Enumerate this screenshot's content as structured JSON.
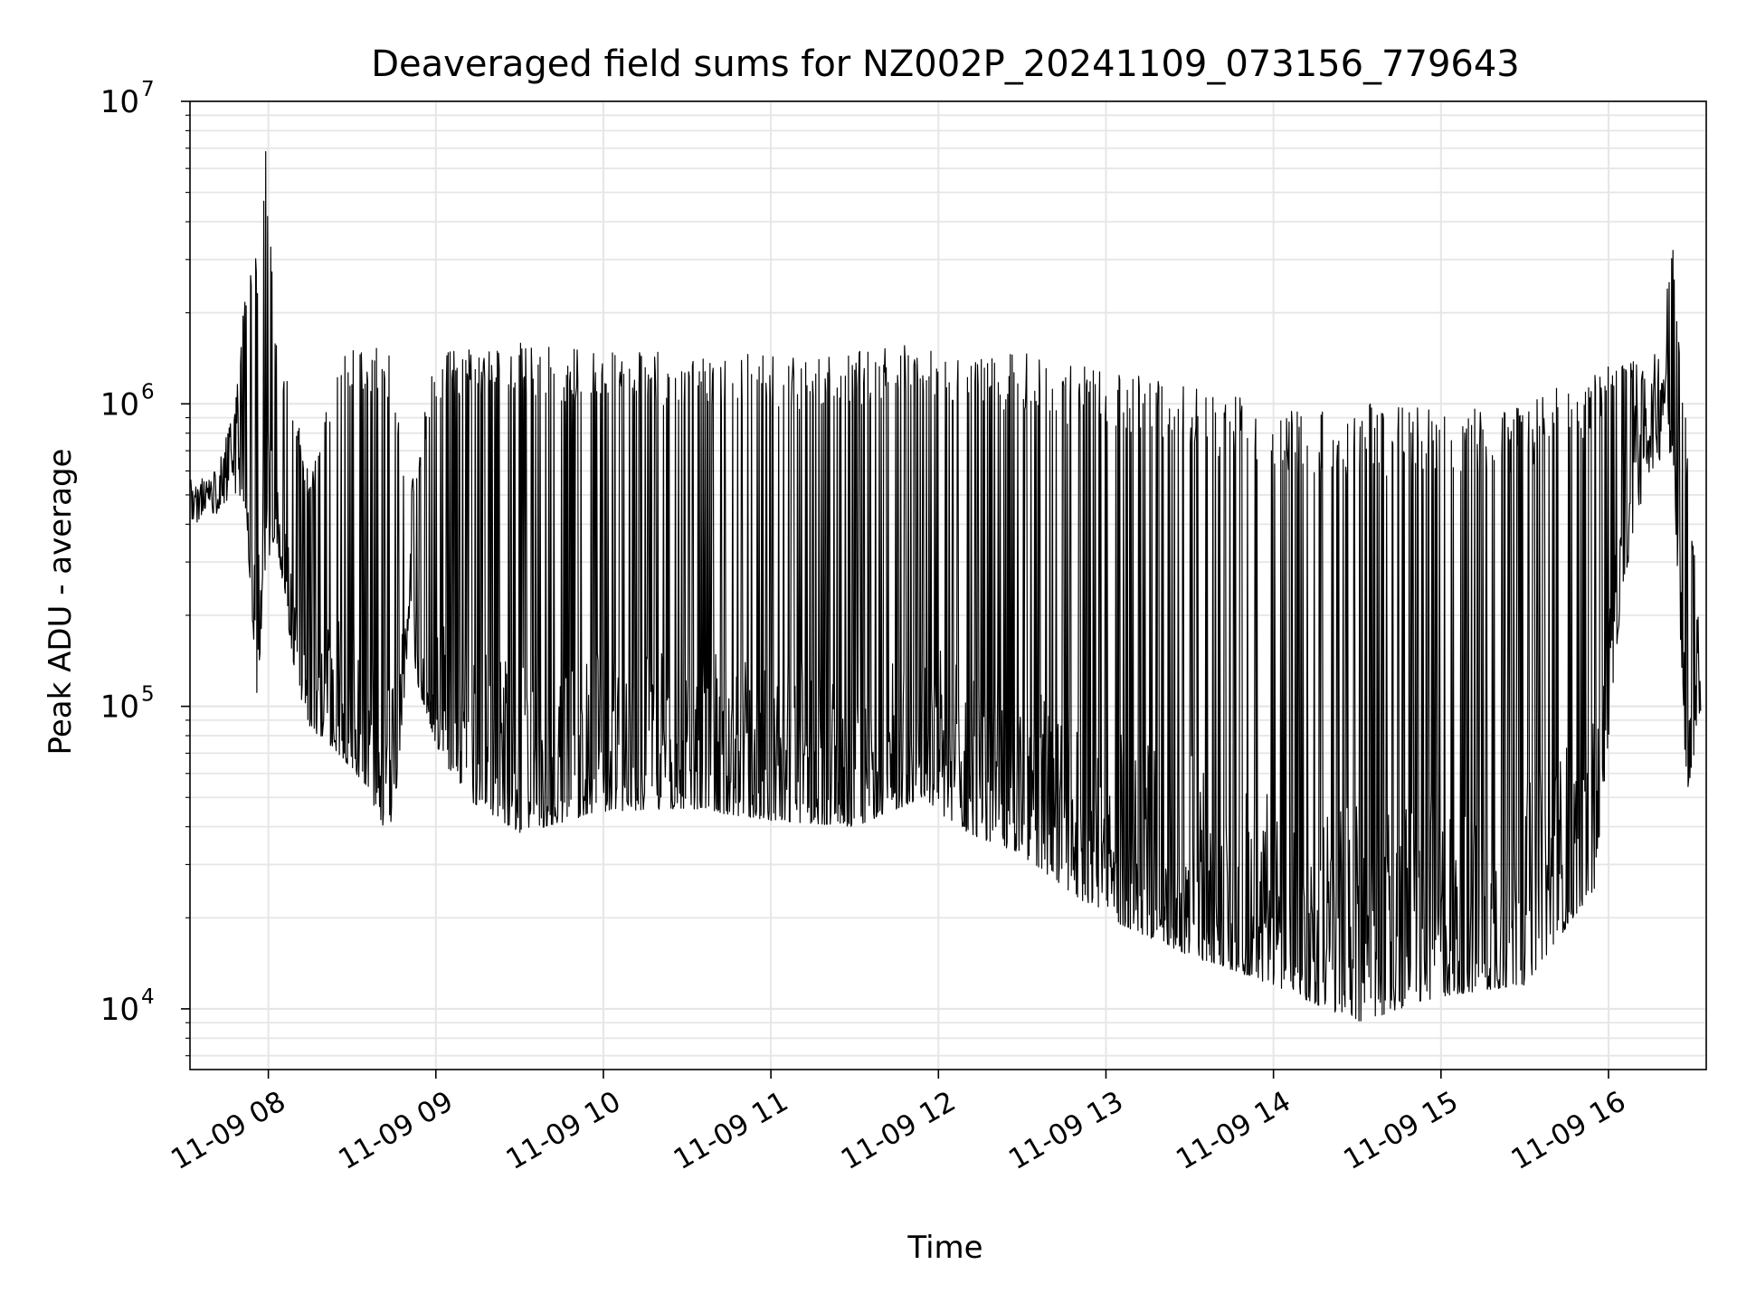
{
  "chart_data": {
    "type": "line",
    "title": "Deaveraged field sums for NZ002P_20241109_073156_779643",
    "xlabel": "Time",
    "ylabel": "Peak ADU - average",
    "yscale": "log",
    "ylim": [
      6300,
      10000000
    ],
    "xlim": [
      "2024-11-09T07:31:56",
      "2024-11-09T16:35:00"
    ],
    "grid": true,
    "line_color": "#000000",
    "grid_color": "#e6e6e6",
    "x_ticks": [
      {
        "t": "2024-11-09T08:00:00",
        "label": "11-09 08"
      },
      {
        "t": "2024-11-09T09:00:00",
        "label": "11-09 09"
      },
      {
        "t": "2024-11-09T10:00:00",
        "label": "11-09 10"
      },
      {
        "t": "2024-11-09T11:00:00",
        "label": "11-09 11"
      },
      {
        "t": "2024-11-09T12:00:00",
        "label": "11-09 12"
      },
      {
        "t": "2024-11-09T13:00:00",
        "label": "11-09 13"
      },
      {
        "t": "2024-11-09T14:00:00",
        "label": "11-09 14"
      },
      {
        "t": "2024-11-09T15:00:00",
        "label": "11-09 15"
      },
      {
        "t": "2024-11-09T16:00:00",
        "label": "11-09 16"
      }
    ],
    "y_ticks": [
      {
        "value": 10000,
        "base": "10",
        "exp": "4"
      },
      {
        "value": 100000,
        "base": "10",
        "exp": "5"
      },
      {
        "value": 1000000,
        "base": "10",
        "exp": "6"
      },
      {
        "value": 10000000,
        "base": "10",
        "exp": "7"
      }
    ],
    "series": [
      {
        "envelope": [
          {
            "t": "2024-11-09T07:32:00",
            "low": 380000,
            "high": 560000
          },
          {
            "t": "2024-11-09T07:40:00",
            "low": 420000,
            "high": 600000
          },
          {
            "t": "2024-11-09T07:48:00",
            "low": 500000,
            "high": 1000000
          },
          {
            "t": "2024-11-09T07:52:00",
            "low": 430000,
            "high": 2500000
          },
          {
            "t": "2024-11-09T07:56:00",
            "low": 105000,
            "high": 3200000
          },
          {
            "t": "2024-11-09T07:59:00",
            "low": 300000,
            "high": 7500000
          },
          {
            "t": "2024-11-09T08:03:00",
            "low": 350000,
            "high": 1500000
          },
          {
            "t": "2024-11-09T08:10:00",
            "low": 120000,
            "high": 1000000
          },
          {
            "t": "2024-11-09T08:15:00",
            "low": 85000,
            "high": 550000
          },
          {
            "t": "2024-11-09T08:25:00",
            "low": 70000,
            "high": 1500000
          },
          {
            "t": "2024-11-09T08:35:00",
            "low": 55000,
            "high": 1600000
          },
          {
            "t": "2024-11-09T08:40:00",
            "low": 40000,
            "high": 1500000
          },
          {
            "t": "2024-11-09T08:45:00",
            "low": 42000,
            "high": 1500000
          },
          {
            "t": "2024-11-09T08:50:00",
            "low": 150000,
            "high": 480000
          },
          {
            "t": "2024-11-09T09:00:00",
            "low": 75000,
            "high": 1500000
          },
          {
            "t": "2024-11-09T09:10:00",
            "low": 50000,
            "high": 1500000
          },
          {
            "t": "2024-11-09T09:30:00",
            "low": 38000,
            "high": 1600000
          },
          {
            "t": "2024-11-09T10:00:00",
            "low": 45000,
            "high": 1500000
          },
          {
            "t": "2024-11-09T10:30:00",
            "low": 46000,
            "high": 1500000
          },
          {
            "t": "2024-11-09T11:00:00",
            "low": 42000,
            "high": 1450000
          },
          {
            "t": "2024-11-09T11:30:00",
            "low": 40000,
            "high": 1500000
          },
          {
            "t": "2024-11-09T11:55:00",
            "low": 50000,
            "high": 1600000
          },
          {
            "t": "2024-11-09T12:05:00",
            "low": 40000,
            "high": 1500000
          },
          {
            "t": "2024-11-09T12:30:00",
            "low": 32000,
            "high": 1500000
          },
          {
            "t": "2024-11-09T13:00:00",
            "low": 20000,
            "high": 1300000
          },
          {
            "t": "2024-11-09T13:30:00",
            "low": 15000,
            "high": 1200000
          },
          {
            "t": "2024-11-09T14:00:00",
            "low": 12000,
            "high": 1000000
          },
          {
            "t": "2024-11-09T14:30:00",
            "low": 9000,
            "high": 1000000
          },
          {
            "t": "2024-11-09T15:00:00",
            "low": 11000,
            "high": 1000000
          },
          {
            "t": "2024-11-09T15:30:00",
            "low": 12000,
            "high": 1000000
          },
          {
            "t": "2024-11-09T15:55:00",
            "low": 25000,
            "high": 1300000
          },
          {
            "t": "2024-11-09T16:05:00",
            "low": 250000,
            "high": 1600000
          },
          {
            "t": "2024-11-09T16:15:00",
            "low": 600000,
            "high": 1200000
          },
          {
            "t": "2024-11-09T16:23:00",
            "low": 700000,
            "high": 3300000
          },
          {
            "t": "2024-11-09T16:28:00",
            "low": 50000,
            "high": 800000
          },
          {
            "t": "2024-11-09T16:33:00",
            "low": 95000,
            "high": 150000
          }
        ]
      }
    ]
  }
}
